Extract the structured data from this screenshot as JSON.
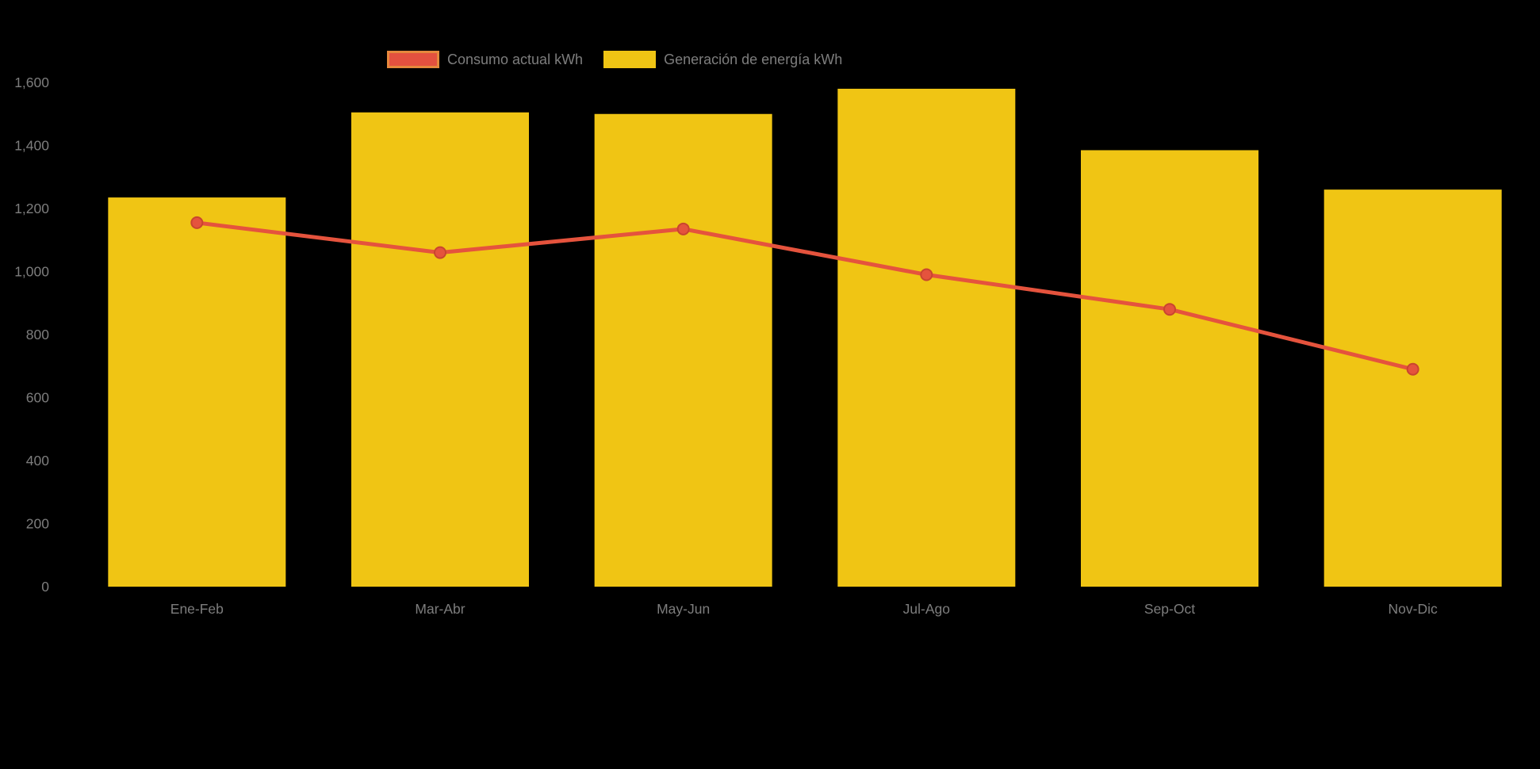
{
  "chart": {
    "background": "#000000",
    "text_color": "#7d7d7d"
  },
  "chart_data": {
    "type": "combo",
    "title": "",
    "categories": [
      "Ene-Feb",
      "Mar-Abr",
      "May-Jun",
      "Jul-Ago",
      "Sep-Oct",
      "Nov-Dic"
    ],
    "series": [
      {
        "name": "Consumo actual kWh",
        "type": "line",
        "color": "#e5533d",
        "point_color": "#e5533d",
        "point_border": "#c9452f",
        "legend_fill": "#e4513f",
        "legend_border": "#e6883c",
        "values": [
          1155,
          1060,
          1135,
          990,
          880,
          690
        ]
      },
      {
        "name": "Generación de energía kWh",
        "type": "bar",
        "color": "#f0c514",
        "legend_fill": "#f0c514",
        "legend_border": "#f0c514",
        "values": [
          1235,
          1505,
          1500,
          1580,
          1385,
          1260
        ]
      }
    ],
    "ylim": [
      0,
      1600
    ],
    "ytick_values": [
      0,
      200,
      400,
      600,
      800,
      1000,
      1200,
      1400,
      1600
    ],
    "yticks": [
      "0",
      "200",
      "400",
      "600",
      "800",
      "1,000",
      "1,200",
      "1,400",
      "1,600"
    ],
    "grid": false,
    "legend_position": "top"
  }
}
